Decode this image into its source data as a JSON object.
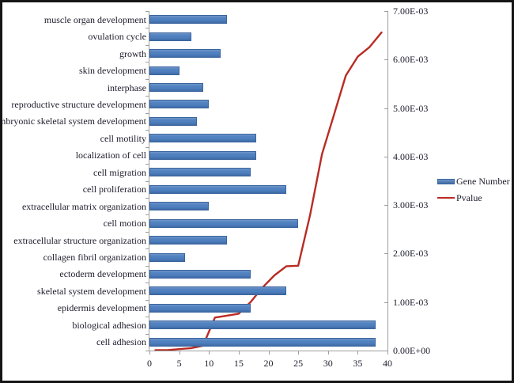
{
  "window": {
    "background": "#ffffff",
    "border_color": "#151515"
  },
  "chart_data": {
    "type": "bar",
    "orientation": "horizontal",
    "title": "",
    "categories": [
      "muscle organ development",
      "ovulation cycle",
      "growth",
      "skin development",
      "interphase",
      "reproductive structure development",
      "embryonic skeletal system development",
      "cell motility",
      "localization of cell",
      "cell migration",
      "cell proliferation",
      "extracellular matrix organization",
      "cell motion",
      "extracellular structure organization",
      "collagen fibril organization",
      "ectoderm development",
      "skeletal system development",
      "epidermis development",
      "biological adhesion",
      "cell adhesion"
    ],
    "series": [
      {
        "name": "Gene Number",
        "type": "bar",
        "color": "#4E7FBE",
        "values": [
          13,
          7,
          12,
          5,
          9,
          10,
          8,
          18,
          18,
          17,
          23,
          10,
          25,
          13,
          6,
          17,
          23,
          17,
          38,
          38
        ]
      },
      {
        "name": "Pvalue",
        "type": "line",
        "color": "#B92B23",
        "values": [
          0.00656,
          0.00626,
          0.00606,
          0.00567,
          0.00486,
          0.00405,
          0.0028,
          0.00175,
          0.00174,
          0.00155,
          0.0013,
          0.001,
          0.00076,
          0.00072,
          0.00068,
          0.0001,
          5e-05,
          3e-05,
          1e-05,
          1e-05
        ]
      }
    ],
    "x_axis": {
      "min": 0,
      "max": 40,
      "ticks": [
        "0",
        "5",
        "10",
        "15",
        "20",
        "25",
        "30",
        "35",
        "40"
      ]
    },
    "y2_axis": {
      "min": 0,
      "max": 0.007,
      "ticks": [
        "0.00E+00",
        "1.00E-03",
        "2.00E-03",
        "3.00E-03",
        "4.00E-03",
        "5.00E-03",
        "6.00E-03",
        "7.00E-03"
      ]
    },
    "grid": false,
    "legend": {
      "position": "right",
      "items": [
        {
          "label": "Gene Number",
          "swatch": "bar"
        },
        {
          "label": "Pvalue",
          "swatch": "line"
        }
      ]
    }
  }
}
